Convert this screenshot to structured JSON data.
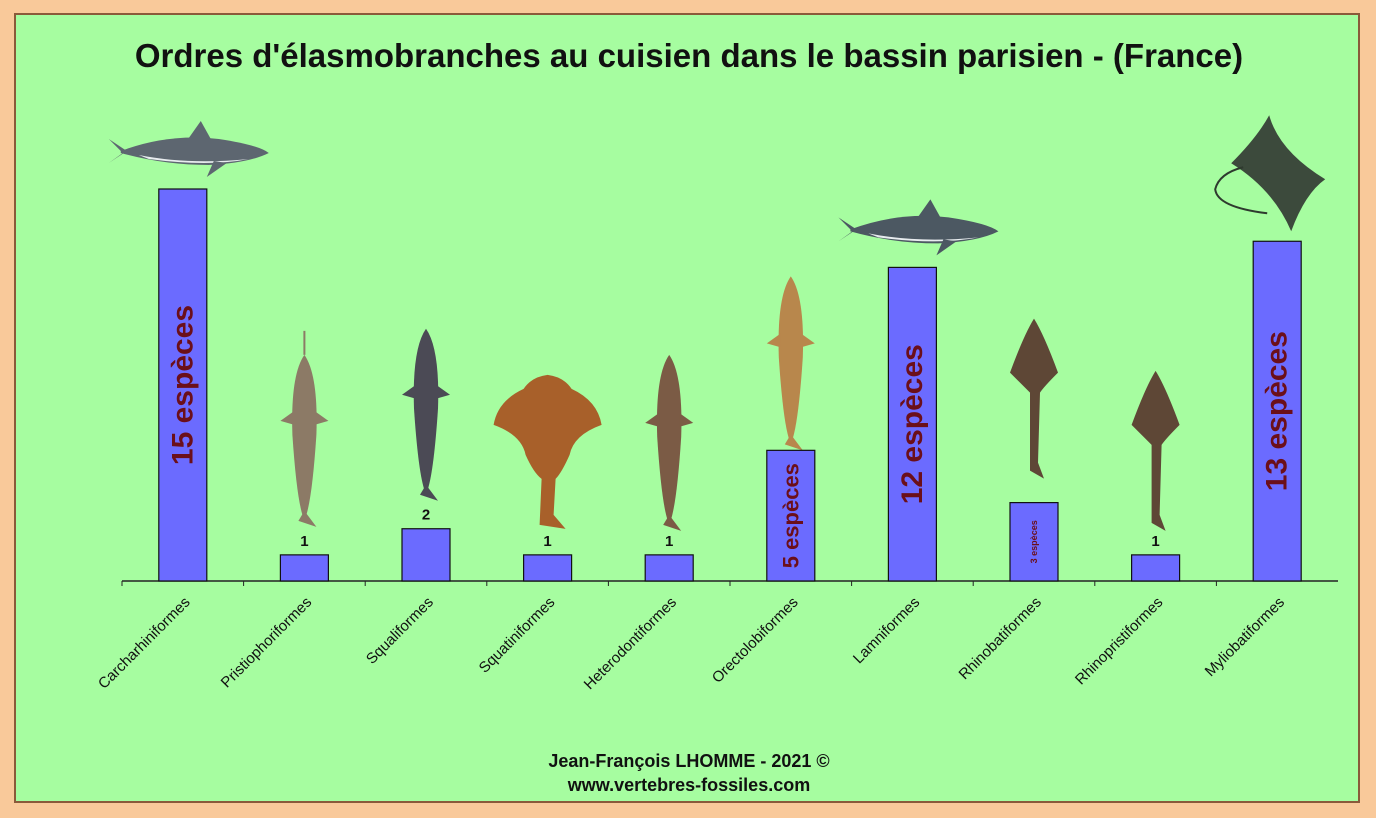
{
  "title": "Ordres d'élasmobranches au cuisien dans le bassin parisien - (France)",
  "credit": {
    "author": "Jean-François LHOMME  - 2021  ©",
    "website": "www.vertebres-fossiles.com"
  },
  "colors": {
    "background": "#a6fda0",
    "outer": "#f9c99a",
    "bar": "#6b6bff",
    "bar_label": "#6b0f1a"
  },
  "chart_data": {
    "type": "bar",
    "categories": [
      "Carcharhiniformes",
      "Pristiophoriformes",
      "Squaliformes",
      "Squatiniformes",
      "Heterodontiformes",
      "Orectolobiformes",
      "Lamniformes",
      "Rhinobatiformes",
      "Rhinopristiformes",
      "Myliobatiformes"
    ],
    "values": [
      15,
      1,
      2,
      1,
      1,
      5,
      12,
      3,
      1,
      13
    ],
    "data_labels": [
      "15 espèces",
      "1",
      "2",
      "1",
      "1",
      "5 espèces",
      "12 espèces",
      "3 espèces",
      "1",
      "13 espèces"
    ],
    "label_placement": [
      "inside",
      "above",
      "above",
      "above",
      "above",
      "inside",
      "inside",
      "inside",
      "above",
      "inside"
    ],
    "ylim": [
      0,
      16
    ],
    "grid": false,
    "legend": "none",
    "illustrations": [
      "shark-icon",
      "sawshark-icon",
      "dogfish-shark-icon",
      "angel-shark-icon",
      "horn-shark-icon",
      "zebra-shark-icon",
      "great-white-shark-icon",
      "guitarfish-icon",
      "guitarfish-icon",
      "eagle-ray-icon"
    ]
  }
}
